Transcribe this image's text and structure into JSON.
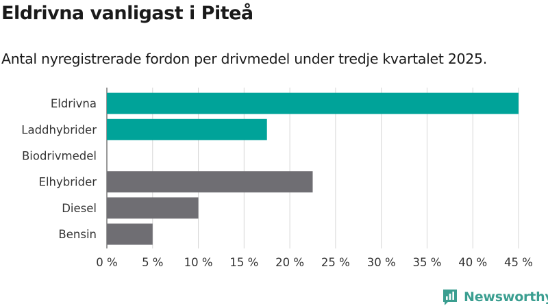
{
  "header": {
    "title": "Eldrivna vanligast i Piteå",
    "subtitle": "Antal nyregistrerade fordon per drivmedel under tredje kvartalet 2025."
  },
  "chart_data": {
    "type": "bar",
    "orientation": "horizontal",
    "categories": [
      "Eldrivna",
      "Laddhybrider",
      "Biodrivmedel",
      "Elhybrider",
      "Diesel",
      "Bensin"
    ],
    "values": [
      45,
      17.5,
      0,
      22.5,
      10,
      5
    ],
    "bar_colors": [
      "#00a399",
      "#00a399",
      "#00a399",
      "#6f6e73",
      "#6f6e73",
      "#6f6e73"
    ],
    "xlim": [
      0,
      45
    ],
    "xticks": [
      0,
      5,
      10,
      15,
      20,
      25,
      30,
      35,
      40,
      45
    ],
    "xtick_labels": [
      "0 %",
      "5 %",
      "10 %",
      "15 %",
      "20 %",
      "25 %",
      "30 %",
      "35 %",
      "40 %",
      "45 %"
    ],
    "grid": true,
    "title": "Eldrivna vanligast i Piteå",
    "subtitle": "Antal nyregistrerade fordon per drivmedel under tredje kvartalet 2025.",
    "xlabel": "",
    "ylabel": ""
  },
  "branding": {
    "logo_text": "Newsworthy",
    "logo_icon": "newsworthy-logo-icon",
    "brand_color": "#3a9e90"
  }
}
